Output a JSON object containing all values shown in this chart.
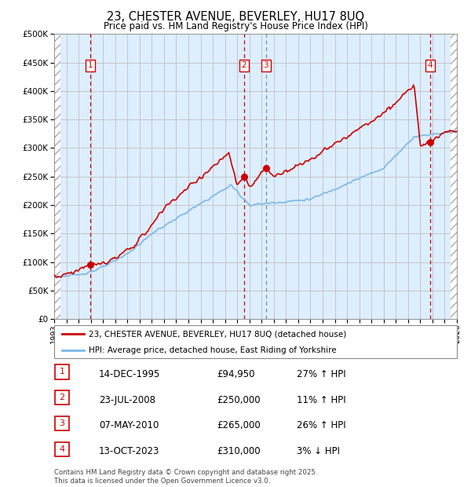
{
  "title": "23, CHESTER AVENUE, BEVERLEY, HU17 8UQ",
  "subtitle": "Price paid vs. HM Land Registry's House Price Index (HPI)",
  "legend_line1": "23, CHESTER AVENUE, BEVERLEY, HU17 8UQ (detached house)",
  "legend_line2": "HPI: Average price, detached house, East Riding of Yorkshire",
  "transactions": [
    {
      "num": 1,
      "date": "14-DEC-1995",
      "price": 94950,
      "hpi_pct": "27% ↑ HPI",
      "year_float": 1995.96
    },
    {
      "num": 2,
      "date": "23-JUL-2008",
      "price": 250000,
      "hpi_pct": "11% ↑ HPI",
      "year_float": 2008.56
    },
    {
      "num": 3,
      "date": "07-MAY-2010",
      "price": 265000,
      "hpi_pct": "26% ↑ HPI",
      "year_float": 2010.35
    },
    {
      "num": 4,
      "date": "13-OCT-2023",
      "price": 310000,
      "hpi_pct": "3% ↓ HPI",
      "year_float": 2023.79
    }
  ],
  "hpi_color": "#7ab8e8",
  "price_color": "#cc0000",
  "marker_color": "#cc0000",
  "transaction_label_color": "#cc0000",
  "vline_color_red": "#cc0000",
  "vline_color_gray": "#888888",
  "ylim": [
    0,
    500000
  ],
  "yticks": [
    0,
    50000,
    100000,
    150000,
    200000,
    250000,
    300000,
    350000,
    400000,
    450000,
    500000
  ],
  "xlim_start": 1993.0,
  "xlim_end": 2026.0,
  "xticks": [
    1993,
    1994,
    1995,
    1996,
    1997,
    1998,
    1999,
    2000,
    2001,
    2002,
    2003,
    2004,
    2005,
    2006,
    2007,
    2008,
    2009,
    2010,
    2011,
    2012,
    2013,
    2014,
    2015,
    2016,
    2017,
    2018,
    2019,
    2020,
    2021,
    2022,
    2023,
    2024,
    2025,
    2026
  ],
  "footer": "Contains HM Land Registry data © Crown copyright and database right 2025.\nThis data is licensed under the Open Government Licence v3.0.",
  "bg_hatch_color": "#aaaaaa",
  "grid_color": "#c0c0c0",
  "plot_bg": "#ddeeff"
}
